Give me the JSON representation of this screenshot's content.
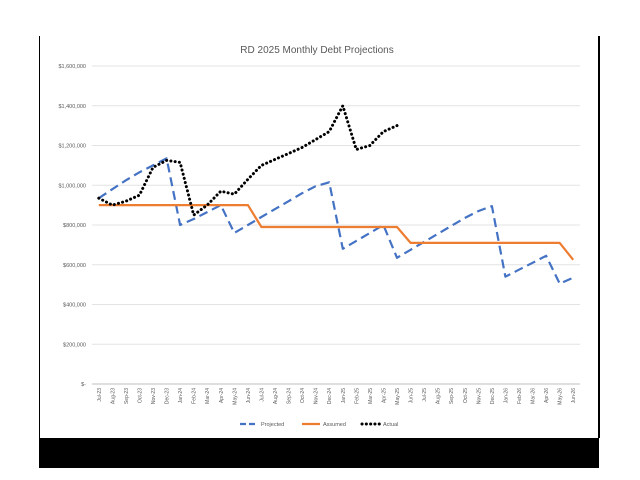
{
  "chart_data": {
    "type": "line",
    "title": "RD 2025 Monthly Debt Projections",
    "xlabel": "",
    "ylabel": "",
    "ylim": [
      0,
      1600000
    ],
    "y_ticks": [
      {
        "value": 0,
        "label": "$-"
      },
      {
        "value": 200000,
        "label": "$200,000"
      },
      {
        "value": 400000,
        "label": "$400,000"
      },
      {
        "value": 600000,
        "label": "$600,000"
      },
      {
        "value": 800000,
        "label": "$800,000"
      },
      {
        "value": 1000000,
        "label": "$1,000,000"
      },
      {
        "value": 1200000,
        "label": "$1,200,000"
      },
      {
        "value": 1400000,
        "label": "$1,400,000"
      },
      {
        "value": 1600000,
        "label": "$1,600,000"
      }
    ],
    "grid": true,
    "legend_position": "bottom",
    "categories": [
      "Jul-23",
      "Aug-23",
      "Sep-23",
      "Oct-23",
      "Nov-23",
      "Dec-23",
      "Jan-24",
      "Feb-24",
      "Mar-24",
      "Apr-24",
      "May-24",
      "Jun-24",
      "Jul-24",
      "Aug-24",
      "Sep-24",
      "Oct-24",
      "Nov-24",
      "Dec-24",
      "Jan-25",
      "Feb-25",
      "Mar-25",
      "Apr-25",
      "May-25",
      "Jun-25",
      "Jul-25",
      "Aug-25",
      "Sep-25",
      "Oct-25",
      "Nov-25",
      "Dec-25",
      "Jan-26",
      "Feb-26",
      "Mar-26",
      "Apr-26",
      "May-26",
      "Jun-26"
    ],
    "series": [
      {
        "name": "Projected",
        "color": "#4472c4",
        "style": "dashed",
        "values": [
          935000,
          980000,
          1025000,
          1065000,
          1100000,
          1135000,
          800000,
          830000,
          865000,
          900000,
          760000,
          800000,
          840000,
          880000,
          920000,
          960000,
          995000,
          1015000,
          680000,
          720000,
          760000,
          800000,
          635000,
          675000,
          715000,
          755000,
          795000,
          835000,
          870000,
          895000,
          540000,
          575000,
          610000,
          645000,
          505000,
          535000
        ]
      },
      {
        "name": "Assumed",
        "color": "#ed7d31",
        "style": "solid",
        "values": [
          900000,
          900000,
          900000,
          900000,
          900000,
          900000,
          900000,
          900000,
          900000,
          900000,
          900000,
          900000,
          790000,
          790000,
          790000,
          790000,
          790000,
          790000,
          790000,
          790000,
          790000,
          790000,
          790000,
          710000,
          710000,
          710000,
          710000,
          710000,
          710000,
          710000,
          710000,
          710000,
          710000,
          710000,
          710000,
          625000
        ]
      },
      {
        "name": "Actual",
        "color": "#000000",
        "style": "dotted",
        "values": [
          935000,
          900000,
          920000,
          950000,
          1090000,
          1125000,
          1115000,
          850000,
          900000,
          970000,
          955000,
          1030000,
          1100000,
          1130000,
          1160000,
          1190000,
          1230000,
          1270000,
          1400000,
          1180000,
          1200000,
          1270000,
          1300000,
          null,
          null,
          null,
          null,
          null,
          null,
          null,
          null,
          null,
          null,
          null,
          null,
          null
        ]
      }
    ]
  }
}
